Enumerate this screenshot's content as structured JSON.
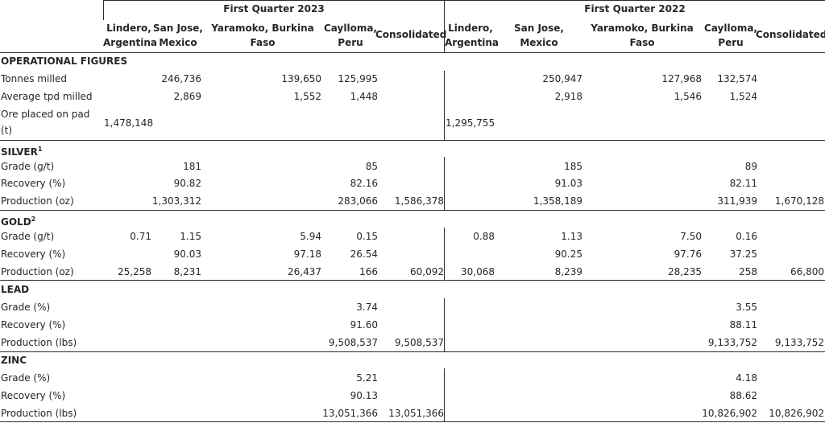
{
  "periods": {
    "q2023": "First Quarter 2023",
    "q2022": "First Quarter 2022"
  },
  "columns": {
    "lindero_1": "Lindero,",
    "lindero_2": "Argentina",
    "sanjose_1": "San Jose,",
    "sanjose_2": "Mexico",
    "yaramoko_1": "Yaramoko, Burkina",
    "yaramoko_2": "Faso",
    "caylloma_1": "Caylloma,",
    "caylloma_2": "Peru",
    "consolidated": "Consolidated"
  },
  "sections": {
    "operational": "OPERATIONAL FIGURES",
    "silver": "SILVER",
    "silver_note": "1",
    "gold": "GOLD",
    "gold_note": "2",
    "lead": "LEAD",
    "zinc": "ZINC"
  },
  "labels": {
    "tonnes_milled": "Tonnes milled",
    "avg_tpd": "Average tpd milled",
    "ore_pad_1": "Ore placed on pad",
    "ore_pad_2": "(t)",
    "grade_gt": "Grade (g/t)",
    "grade_pct": "Grade (%)",
    "recovery": "Recovery (%)",
    "prod_oz": "Production (oz)",
    "prod_lbs": "Production (lbs)"
  },
  "rows": {
    "tonnes_milled": {
      "q23": {
        "sanjose": "246,736",
        "yaramoko": "139,650",
        "caylloma": "125,995"
      },
      "q22": {
        "sanjose": "250,947",
        "yaramoko": "127,968",
        "caylloma": "132,574"
      }
    },
    "avg_tpd": {
      "q23": {
        "sanjose": "2,869",
        "yaramoko": "1,552",
        "caylloma": "1,448"
      },
      "q22": {
        "sanjose": "2,918",
        "yaramoko": "1,546",
        "caylloma": "1,524"
      }
    },
    "ore_pad": {
      "q23": {
        "lindero": "1,478,148"
      },
      "q22": {
        "lindero": "1,295,755"
      }
    },
    "silver_grade": {
      "q23": {
        "sanjose": "181",
        "caylloma": "85"
      },
      "q22": {
        "sanjose": "185",
        "caylloma": "89"
      }
    },
    "silver_recovery": {
      "q23": {
        "sanjose": "90.82",
        "caylloma": "82.16"
      },
      "q22": {
        "sanjose": "91.03",
        "caylloma": "82.11"
      }
    },
    "silver_production": {
      "q23": {
        "sanjose": "1,303,312",
        "caylloma": "283,066",
        "consolidated": "1,586,378"
      },
      "q22": {
        "sanjose": "1,358,189",
        "caylloma": "311,939",
        "consolidated": "1,670,128"
      }
    },
    "gold_grade": {
      "q23": {
        "lindero": "0.71",
        "sanjose": "1.15",
        "yaramoko": "5.94",
        "caylloma": "0.15"
      },
      "q22": {
        "lindero": "0.88",
        "sanjose": "1.13",
        "yaramoko": "7.50",
        "caylloma": "0.16"
      }
    },
    "gold_recovery": {
      "q23": {
        "sanjose": "90.03",
        "yaramoko": "97.18",
        "caylloma": "26.54"
      },
      "q22": {
        "sanjose": "90.25",
        "yaramoko": "97.76",
        "caylloma": "37.25"
      }
    },
    "gold_production": {
      "q23": {
        "lindero": "25,258",
        "sanjose": "8,231",
        "yaramoko": "26,437",
        "caylloma": "166",
        "consolidated": "60,092"
      },
      "q22": {
        "lindero": "30,068",
        "sanjose": "8,239",
        "yaramoko": "28,235",
        "caylloma": "258",
        "consolidated": "66,800"
      }
    },
    "lead_grade": {
      "q23": {
        "caylloma": "3.74"
      },
      "q22": {
        "caylloma": "3.55"
      }
    },
    "lead_recovery": {
      "q23": {
        "caylloma": "91.60"
      },
      "q22": {
        "caylloma": "88.11"
      }
    },
    "lead_production": {
      "q23": {
        "caylloma": "9,508,537",
        "consolidated": "9,508,537"
      },
      "q22": {
        "caylloma": "9,133,752",
        "consolidated": "9,133,752"
      }
    },
    "zinc_grade": {
      "q23": {
        "caylloma": "5.21"
      },
      "q22": {
        "caylloma": "4.18"
      }
    },
    "zinc_recovery": {
      "q23": {
        "caylloma": "90.13"
      },
      "q22": {
        "caylloma": "88.62"
      }
    },
    "zinc_production": {
      "q23": {
        "caylloma": "13,051,366",
        "consolidated": "13,051,366"
      },
      "q22": {
        "caylloma": "10,826,902",
        "consolidated": "10,826,902"
      }
    }
  }
}
